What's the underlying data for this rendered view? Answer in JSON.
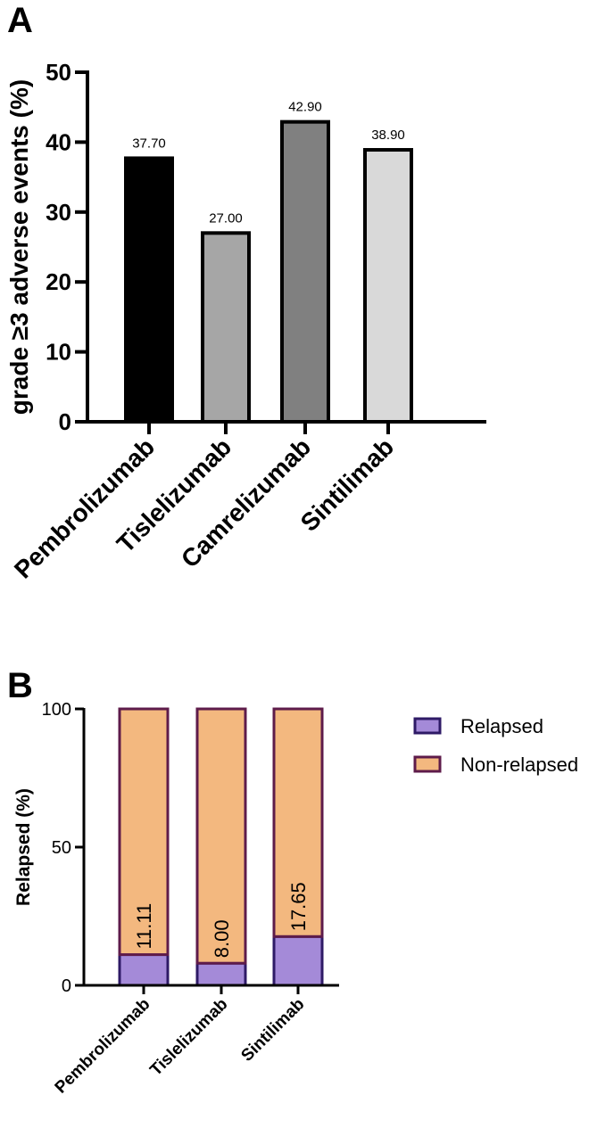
{
  "chart_data": [
    {
      "panel": "A",
      "type": "bar",
      "title": "",
      "xlabel": "",
      "ylabel": "grade ≥3 adverse events (%)",
      "ylim": [
        0,
        50
      ],
      "yticks": [
        0,
        10,
        20,
        30,
        40,
        50
      ],
      "grid": false,
      "categories": [
        "Pembrolizumab",
        "Tislelizumab",
        "Camrelizumab",
        "Sintilimab"
      ],
      "values": [
        37.7,
        27.0,
        42.9,
        38.9
      ],
      "value_labels": [
        "37.70",
        "27.00",
        "42.90",
        "38.90"
      ],
      "colors": [
        "#000000",
        "#a6a6a6",
        "#808080",
        "#d9d9d9"
      ]
    },
    {
      "panel": "B",
      "type": "bar",
      "stacked": true,
      "title": "",
      "xlabel": "",
      "ylabel": "Relapsed (%)",
      "ylim": [
        0,
        100
      ],
      "yticks": [
        0,
        50,
        100
      ],
      "grid": false,
      "legend_position": "right",
      "categories": [
        "Pembrolizumab",
        "Tislelizumab",
        "Sintilimab"
      ],
      "series": [
        {
          "name": "Relapsed",
          "values": [
            11.11,
            8.0,
            17.65
          ],
          "color": "#a48ad8",
          "edge": "#2e1a66"
        },
        {
          "name": "Non-relapsed",
          "values": [
            88.89,
            92.0,
            82.35
          ],
          "color": "#f3b87f",
          "edge": "#5e1b4a"
        }
      ],
      "value_labels": [
        "11.11",
        "8.00",
        "17.65"
      ]
    }
  ]
}
